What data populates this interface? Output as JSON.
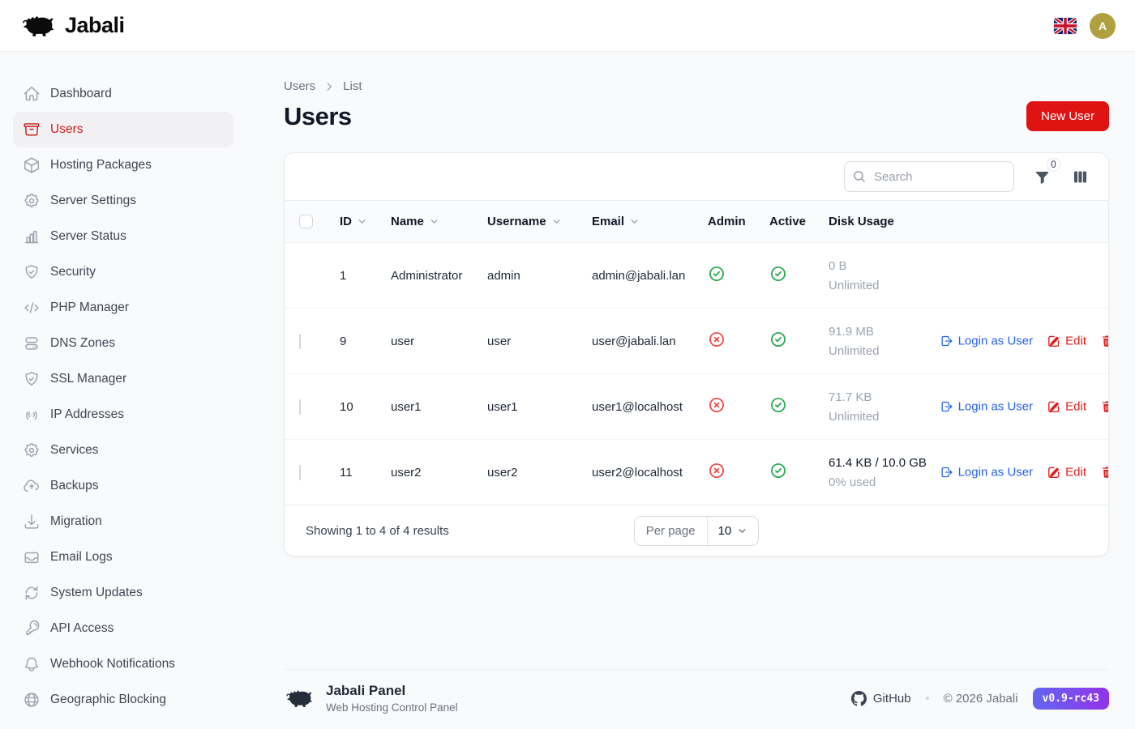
{
  "topbar": {
    "brand": "Jabali",
    "language_flag": "uk-flag",
    "avatar_initial": "A"
  },
  "sidebar": {
    "items": [
      {
        "label": "Dashboard",
        "icon": "home",
        "active": false
      },
      {
        "label": "Users",
        "icon": "archive-box",
        "active": true
      },
      {
        "label": "Hosting Packages",
        "icon": "cube",
        "active": false
      },
      {
        "label": "Server Settings",
        "icon": "cog",
        "active": false
      },
      {
        "label": "Server Status",
        "icon": "chart-bar",
        "active": false
      },
      {
        "label": "Security",
        "icon": "shield-check",
        "active": false
      },
      {
        "label": "PHP Manager",
        "icon": "code-bracket",
        "active": false
      },
      {
        "label": "DNS Zones",
        "icon": "server",
        "active": false
      },
      {
        "label": "SSL Manager",
        "icon": "shield-check",
        "active": false
      },
      {
        "label": "IP Addresses",
        "icon": "signal",
        "active": false
      },
      {
        "label": "Services",
        "icon": "cog",
        "active": false
      },
      {
        "label": "Backups",
        "icon": "cloud-arrow-up",
        "active": false
      },
      {
        "label": "Migration",
        "icon": "arrow-down-tray",
        "active": false
      },
      {
        "label": "Email Logs",
        "icon": "inbox",
        "active": false
      },
      {
        "label": "System Updates",
        "icon": "arrow-path",
        "active": false
      },
      {
        "label": "API Access",
        "icon": "key",
        "active": false
      },
      {
        "label": "Webhook Notifications",
        "icon": "bell",
        "active": false
      },
      {
        "label": "Geographic Blocking",
        "icon": "globe",
        "active": false
      }
    ]
  },
  "breadcrumb": {
    "items": [
      "Users",
      "List"
    ]
  },
  "page": {
    "title": "Users",
    "new_user_button": "New User"
  },
  "table": {
    "search_placeholder": "Search",
    "filter_count": "0",
    "columns": [
      {
        "label": "ID",
        "sortable": true
      },
      {
        "label": "Name",
        "sortable": true
      },
      {
        "label": "Username",
        "sortable": true
      },
      {
        "label": "Email",
        "sortable": true
      },
      {
        "label": "Admin",
        "sortable": false
      },
      {
        "label": "Active",
        "sortable": false
      },
      {
        "label": "Disk Usage",
        "sortable": false
      }
    ],
    "rows": [
      {
        "id": "1",
        "name": "Administrator",
        "username": "admin",
        "email": "admin@jabali.lan",
        "admin": true,
        "active": true,
        "disk_primary": "0 B",
        "disk_secondary": "Unlimited",
        "disk_primary_dark": false,
        "selectable": false,
        "has_actions": false
      },
      {
        "id": "9",
        "name": "user",
        "username": "user",
        "email": "user@jabali.lan",
        "admin": false,
        "active": true,
        "disk_primary": "91.9 MB",
        "disk_secondary": "Unlimited",
        "disk_primary_dark": false,
        "selectable": true,
        "has_actions": true
      },
      {
        "id": "10",
        "name": "user1",
        "username": "user1",
        "email": "user1@localhost",
        "admin": false,
        "active": true,
        "disk_primary": "71.7 KB",
        "disk_secondary": "Unlimited",
        "disk_primary_dark": false,
        "selectable": true,
        "has_actions": true
      },
      {
        "id": "11",
        "name": "user2",
        "username": "user2",
        "email": "user2@localhost",
        "admin": false,
        "active": true,
        "disk_primary": "61.4 KB / 10.0 GB",
        "disk_secondary": "0% used",
        "disk_primary_dark": true,
        "selectable": true,
        "has_actions": true
      }
    ],
    "actions": {
      "login_as": "Login as User",
      "edit": "Edit",
      "delete_icon": "trash-icon"
    },
    "pagination": {
      "summary": "Showing 1 to 4 of 4 results",
      "per_page_label": "Per page",
      "per_page_value": "10"
    }
  },
  "footer": {
    "brand": "Jabali Panel",
    "subtitle": "Web Hosting Control Panel",
    "github_label": "GitHub",
    "copyright": "© 2026 Jabali",
    "version": "v0.9-rc43"
  },
  "colors": {
    "primary_red": "#e01313",
    "sidebar_active_red": "#c81e1e",
    "link_blue": "#2563eb",
    "success_green": "#22a74a",
    "danger_red": "#f04343",
    "avatar_gold": "#b0a040",
    "badge_gradient_start": "#6366f1",
    "badge_gradient_end": "#9333ea"
  }
}
